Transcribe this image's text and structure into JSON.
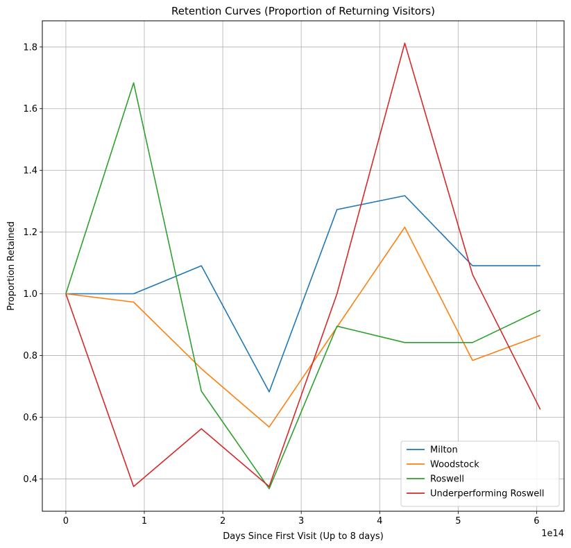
{
  "chart_data": {
    "type": "line",
    "title": "Retention Curves (Proportion of Returning Visitors)",
    "xlabel": "Days Since First Visit (Up to 8 days)",
    "ylabel": "Proportion Retained",
    "x_offset_label": "1e14",
    "xlim": [
      -0.3,
      6.35
    ],
    "ylim": [
      0.295,
      1.885
    ],
    "x_ticks": [
      0,
      1,
      2,
      3,
      4,
      5,
      6
    ],
    "y_ticks": [
      0.4,
      0.6,
      0.8,
      1.0,
      1.2,
      1.4,
      1.6,
      1.8
    ],
    "x_tick_labels": [
      "0",
      "1",
      "2",
      "3",
      "4",
      "5",
      "6"
    ],
    "y_tick_labels": [
      "0.4",
      "0.6",
      "0.8",
      "1.0",
      "1.2",
      "1.4",
      "1.6",
      "1.8"
    ],
    "grid": true,
    "legend_position": "lower-right",
    "x": [
      0,
      0.864,
      1.728,
      2.592,
      3.456,
      4.32,
      5.184,
      6.048
    ],
    "series": [
      {
        "name": "Milton",
        "color": "#1f77b4",
        "values": [
          1.0,
          1.0,
          1.091,
          0.682,
          1.273,
          1.318,
          1.091,
          1.091
        ]
      },
      {
        "name": "Woodstock",
        "color": "#ff7f0e",
        "values": [
          1.0,
          0.973,
          0.757,
          0.568,
          0.892,
          1.216,
          0.784,
          0.865
        ]
      },
      {
        "name": "Roswell",
        "color": "#2ca02c",
        "values": [
          1.0,
          1.684,
          0.684,
          0.368,
          0.895,
          0.842,
          0.842,
          0.947
        ]
      },
      {
        "name": "Underperforming Roswell",
        "color": "#d62728",
        "values": [
          1.0,
          0.375,
          0.5625,
          0.375,
          1.0,
          1.8125,
          1.0625,
          0.625
        ]
      }
    ]
  }
}
